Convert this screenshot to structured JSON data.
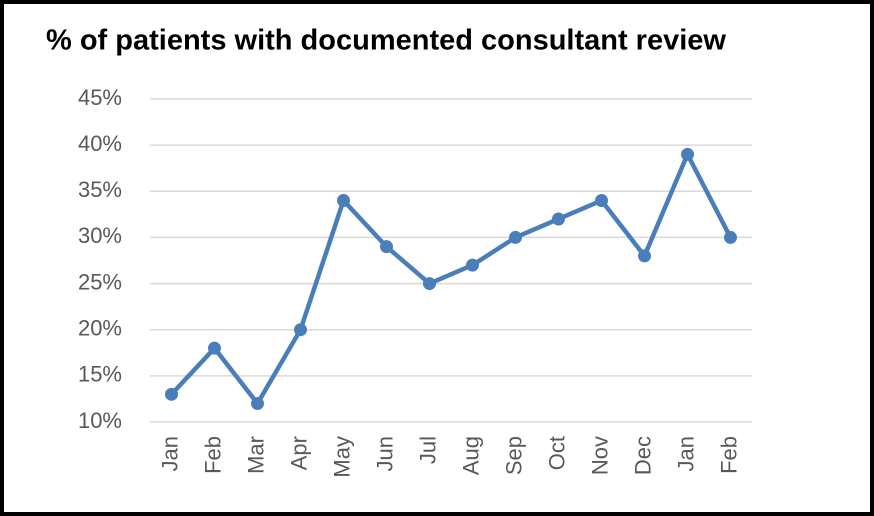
{
  "chart_data": {
    "type": "line",
    "title": "% of patients with documented consultant review",
    "categories": [
      "Jan",
      "Feb",
      "Mar",
      "Apr",
      "May",
      "Jun",
      "Jul",
      "Aug",
      "Sep",
      "Oct",
      "Nov",
      "Dec",
      "Jan",
      "Feb"
    ],
    "values": [
      13,
      18,
      12,
      20,
      34,
      29,
      25,
      27,
      30,
      32,
      34,
      28,
      39,
      30
    ],
    "color": "#4a7ebb",
    "ylim": [
      10,
      45
    ],
    "yticks": [
      {
        "value": 10,
        "label": "10%"
      },
      {
        "value": 15,
        "label": "15%"
      },
      {
        "value": 20,
        "label": "20%"
      },
      {
        "value": 25,
        "label": "25%"
      },
      {
        "value": 30,
        "label": "30%"
      },
      {
        "value": 35,
        "label": "35%"
      },
      {
        "value": 40,
        "label": "40%"
      },
      {
        "value": 45,
        "label": "45%"
      }
    ],
    "grid": true
  }
}
